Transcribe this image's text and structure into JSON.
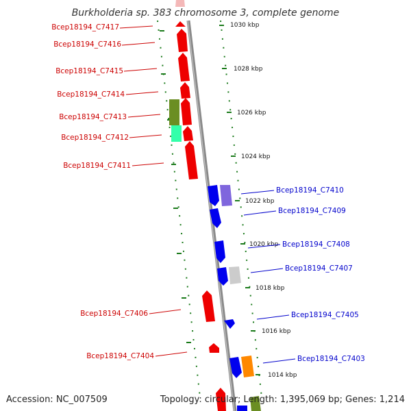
{
  "title": "Burkholderia sp. 383 chromosome 3, complete genome",
  "footer": {
    "accession": "Accession: NC_007509",
    "summary": "Topology: circular; Length: 1,395,069 bp; Genes: 1,214"
  },
  "scale_labels": [
    "1030 kbp",
    "1028 kbp",
    "1026 kbp",
    "1024 kbp",
    "1022 kbp",
    "1020 kbp",
    "1018 kbp",
    "1016 kbp",
    "1014 kbp"
  ],
  "colors": {
    "reverse_strand": "#ee0000",
    "forward_strand": "#0000ee",
    "backbone": "#888888",
    "ruler": "#1a7a1a",
    "olive": "#6b8e23",
    "aquamarine": "#33ffaa",
    "lavender": "#7f66dd",
    "light_gray": "#cccccc",
    "orange": "#ff8800"
  },
  "genes_reverse": [
    "Bcep18194_C7417",
    "Bcep18194_C7416",
    "Bcep18194_C7415",
    "Bcep18194_C7414",
    "Bcep18194_C7413",
    "Bcep18194_C7412",
    "Bcep18194_C7411",
    "Bcep18194_C7406",
    "Bcep18194_C7404"
  ],
  "genes_forward": [
    "Bcep18194_C7410",
    "Bcep18194_C7409",
    "Bcep18194_C7408",
    "Bcep18194_C7407",
    "Bcep18194_C7405",
    "Bcep18194_C7403"
  ]
}
